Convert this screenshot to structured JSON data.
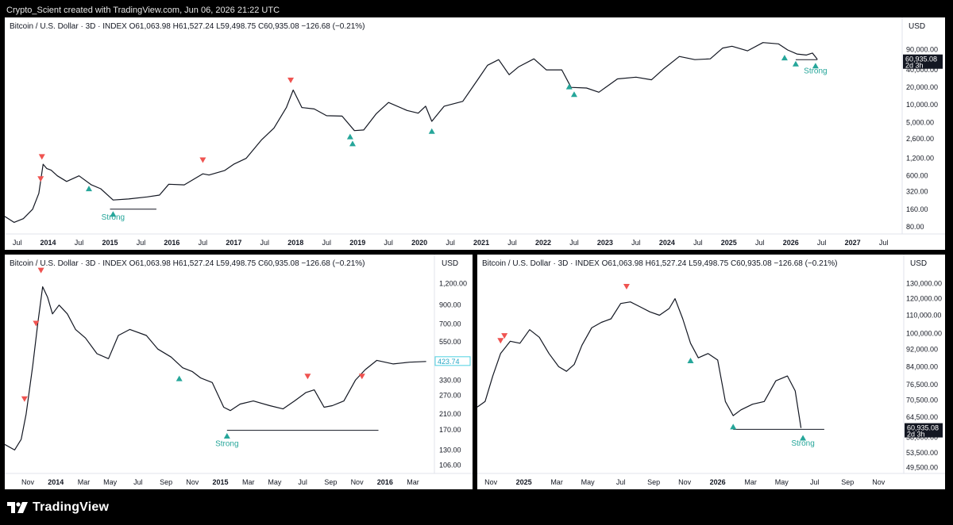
{
  "header": {
    "attribution": "Crypto_Scient created with TradingView.com, Jun 06, 2026 21:22 UTC"
  },
  "brand": {
    "name": "TradingView"
  },
  "colors": {
    "price_line": "#131722",
    "sell": "#ef5350",
    "buy": "#26a69a",
    "strong": "#26a69a",
    "background": "#ffffff"
  },
  "chart_data": [
    {
      "type": "line",
      "ohlc_label": "Bitcoin / U.S. Dollar · 3D · INDEX  O61,063.98  H61,527.24  L59,498.75  C60,935.08  −126.68 (−0.21%)",
      "currency": "USD",
      "scale": "log",
      "ylim": [
        60,
        160000
      ],
      "xlim": [
        2013.3,
        2027.8
      ],
      "y_ticks": [
        80,
        160,
        320,
        600,
        1200,
        2600,
        5000,
        10000,
        20000,
        40000,
        90000
      ],
      "y_tick_labels": [
        "80.00",
        "160.00",
        "320.00",
        "600.00",
        "1,200.00",
        "2,600.00",
        "5,000.00",
        "10,000.00",
        "20,000.00",
        "40,000.00",
        "90,000.00"
      ],
      "x_ticks": [
        2013.5,
        2014,
        2014.5,
        2015,
        2015.5,
        2016,
        2016.5,
        2017,
        2017.5,
        2018,
        2018.5,
        2019,
        2019.5,
        2020,
        2020.5,
        2021,
        2021.5,
        2022,
        2022.5,
        2023,
        2023.5,
        2024,
        2024.5,
        2025,
        2025.5,
        2026,
        2026.5,
        2027,
        2027.5
      ],
      "x_tick_labels": [
        "Jul",
        "2014",
        "Jul",
        "2015",
        "Jul",
        "2016",
        "Jul",
        "2017",
        "Jul",
        "2018",
        "Jul",
        "2019",
        "Jul",
        "2020",
        "Jul",
        "2021",
        "Jul",
        "2022",
        "Jul",
        "2023",
        "Jul",
        "2024",
        "Jul",
        "2025",
        "Jul",
        "2026",
        "Jul",
        "2027",
        "Jul"
      ],
      "last_price": {
        "value": 60935.08,
        "label": "60,935.08",
        "countdown": "2d 3h"
      },
      "series": [
        {
          "points": [
            [
              2013.3,
              120
            ],
            [
              2013.45,
              95
            ],
            [
              2013.6,
              110
            ],
            [
              2013.75,
              160
            ],
            [
              2013.85,
              300
            ],
            [
              2013.92,
              950
            ],
            [
              2013.98,
              800
            ],
            [
              2014.05,
              750
            ],
            [
              2014.15,
              600
            ],
            [
              2014.3,
              480
            ],
            [
              2014.5,
              600
            ],
            [
              2014.7,
              420
            ],
            [
              2014.85,
              360
            ],
            [
              2015.05,
              230
            ],
            [
              2015.3,
              240
            ],
            [
              2015.6,
              260
            ],
            [
              2015.8,
              280
            ],
            [
              2015.95,
              430
            ],
            [
              2016.2,
              420
            ],
            [
              2016.5,
              650
            ],
            [
              2016.6,
              620
            ],
            [
              2016.85,
              740
            ],
            [
              2017.0,
              950
            ],
            [
              2017.2,
              1200
            ],
            [
              2017.45,
              2500
            ],
            [
              2017.65,
              4000
            ],
            [
              2017.85,
              9000
            ],
            [
              2017.96,
              18000
            ],
            [
              2018.1,
              9000
            ],
            [
              2018.3,
              8500
            ],
            [
              2018.5,
              6500
            ],
            [
              2018.75,
              6400
            ],
            [
              2018.95,
              3600
            ],
            [
              2019.1,
              3700
            ],
            [
              2019.3,
              7000
            ],
            [
              2019.5,
              11000
            ],
            [
              2019.8,
              8000
            ],
            [
              2019.98,
              7200
            ],
            [
              2020.1,
              9500
            ],
            [
              2020.2,
              5200
            ],
            [
              2020.4,
              9500
            ],
            [
              2020.7,
              11500
            ],
            [
              2020.95,
              28000
            ],
            [
              2021.1,
              48000
            ],
            [
              2021.28,
              60000
            ],
            [
              2021.45,
              33000
            ],
            [
              2021.6,
              45000
            ],
            [
              2021.85,
              62000
            ],
            [
              2022.05,
              40000
            ],
            [
              2022.3,
              40000
            ],
            [
              2022.45,
              20000
            ],
            [
              2022.7,
              19500
            ],
            [
              2022.9,
              16500
            ],
            [
              2023.2,
              28000
            ],
            [
              2023.5,
              30000
            ],
            [
              2023.75,
              27000
            ],
            [
              2023.95,
              42000
            ],
            [
              2024.2,
              68000
            ],
            [
              2024.45,
              60000
            ],
            [
              2024.7,
              62000
            ],
            [
              2024.9,
              95000
            ],
            [
              2025.05,
              102000
            ],
            [
              2025.3,
              85000
            ],
            [
              2025.55,
              118000
            ],
            [
              2025.8,
              112000
            ],
            [
              2025.95,
              88000
            ],
            [
              2026.1,
              75000
            ],
            [
              2026.25,
              72000
            ],
            [
              2026.35,
              78000
            ],
            [
              2026.43,
              60935
            ]
          ]
        }
      ],
      "markers": [
        {
          "x": 2013.88,
          "y": 520,
          "type": "sell"
        },
        {
          "x": 2013.9,
          "y": 1250,
          "type": "sell"
        },
        {
          "x": 2014.66,
          "y": 370,
          "type": "buy"
        },
        {
          "x": 2015.05,
          "y": 135,
          "type": "buy"
        },
        {
          "x": 2016.5,
          "y": 1100,
          "type": "sell"
        },
        {
          "x": 2017.92,
          "y": 26000,
          "type": "sell"
        },
        {
          "x": 2018.88,
          "y": 2900,
          "type": "buy"
        },
        {
          "x": 2018.92,
          "y": 2200,
          "type": "buy"
        },
        {
          "x": 2020.2,
          "y": 3600,
          "type": "buy"
        },
        {
          "x": 2022.42,
          "y": 21000,
          "type": "buy"
        },
        {
          "x": 2022.5,
          "y": 15500,
          "type": "buy"
        },
        {
          "x": 2025.9,
          "y": 66000,
          "type": "buy"
        },
        {
          "x": 2026.08,
          "y": 52000,
          "type": "buy"
        },
        {
          "x": 2026.4,
          "y": 48000,
          "type": "buy"
        }
      ],
      "support_lines": [
        {
          "x1": 2015.0,
          "x2": 2015.75,
          "y": 160
        },
        {
          "x1": 2026.08,
          "x2": 2026.43,
          "y": 60000
        }
      ],
      "annotations": [
        {
          "text": "Strong",
          "x": 2015.05,
          "y": 105
        },
        {
          "text": "Strong",
          "x": 2026.4,
          "y": 35000
        }
      ]
    },
    {
      "type": "line",
      "ohlc_label": "Bitcoin / U.S. Dollar · 3D · INDEX  O61,063.98  H61,527.24  L59,498.75  C60,935.08  −126.68 (−0.21%)",
      "currency": "USD",
      "scale": "log",
      "ylim": [
        95,
        1400
      ],
      "xlim": [
        2013.69,
        2016.3
      ],
      "y_ticks": [
        106,
        130,
        170,
        210,
        270,
        330,
        420,
        550,
        700,
        900,
        1200
      ],
      "y_tick_labels": [
        "106.00",
        "130.00",
        "170.00",
        "210.00",
        "270.00",
        "330.00",
        "420.00",
        "550.00",
        "700.00",
        "900.00",
        "1,200.00"
      ],
      "x_ticks": [
        2013.67,
        2013.83,
        2014.0,
        2014.17,
        2014.33,
        2014.5,
        2014.67,
        2014.83,
        2015.0,
        2015.17,
        2015.33,
        2015.5,
        2015.67,
        2015.83,
        2016.0,
        2016.17
      ],
      "x_tick_labels": [
        "Sep",
        "Nov",
        "2014",
        "Mar",
        "May",
        "Jul",
        "Sep",
        "Nov",
        "2015",
        "Mar",
        "May",
        "Jul",
        "Sep",
        "Nov",
        "2016",
        "Mar"
      ],
      "last_price": {
        "value": 423.74,
        "label": "423.74"
      },
      "series": [
        {
          "points": [
            [
              2013.69,
              140
            ],
            [
              2013.75,
              130
            ],
            [
              2013.79,
              150
            ],
            [
              2013.82,
              210
            ],
            [
              2013.86,
              400
            ],
            [
              2013.89,
              700
            ],
            [
              2013.92,
              1150
            ],
            [
              2013.95,
              1000
            ],
            [
              2013.98,
              800
            ],
            [
              2014.02,
              900
            ],
            [
              2014.07,
              800
            ],
            [
              2014.12,
              650
            ],
            [
              2014.18,
              580
            ],
            [
              2014.25,
              470
            ],
            [
              2014.32,
              440
            ],
            [
              2014.38,
              600
            ],
            [
              2014.45,
              650
            ],
            [
              2014.55,
              600
            ],
            [
              2014.62,
              500
            ],
            [
              2014.7,
              450
            ],
            [
              2014.77,
              390
            ],
            [
              2014.83,
              370
            ],
            [
              2014.88,
              340
            ],
            [
              2014.95,
              320
            ],
            [
              2015.02,
              230
            ],
            [
              2015.06,
              220
            ],
            [
              2015.12,
              240
            ],
            [
              2015.2,
              250
            ],
            [
              2015.3,
              235
            ],
            [
              2015.38,
              225
            ],
            [
              2015.45,
              250
            ],
            [
              2015.52,
              280
            ],
            [
              2015.57,
              290
            ],
            [
              2015.63,
              230
            ],
            [
              2015.68,
              235
            ],
            [
              2015.75,
              250
            ],
            [
              2015.82,
              330
            ],
            [
              2015.88,
              380
            ],
            [
              2015.95,
              430
            ],
            [
              2016.05,
              410
            ],
            [
              2016.15,
              420
            ],
            [
              2016.25,
              424
            ]
          ]
        }
      ],
      "markers": [
        {
          "x": 2013.81,
          "y": 255,
          "type": "sell"
        },
        {
          "x": 2013.88,
          "y": 700,
          "type": "sell"
        },
        {
          "x": 2013.91,
          "y": 1420,
          "type": "sell"
        },
        {
          "x": 2014.75,
          "y": 340,
          "type": "buy"
        },
        {
          "x": 2015.04,
          "y": 158,
          "type": "buy"
        },
        {
          "x": 2015.53,
          "y": 345,
          "type": "sell"
        },
        {
          "x": 2015.86,
          "y": 345,
          "type": "sell"
        }
      ],
      "support_lines": [
        {
          "x1": 2015.04,
          "x2": 2015.96,
          "y": 169
        }
      ],
      "annotations": [
        {
          "text": "Strong",
          "x": 2015.04,
          "y": 137
        }
      ]
    },
    {
      "type": "line",
      "ohlc_label": "Bitcoin / U.S. Dollar · 3D · INDEX  O61,063.98  H61,527.24  L59,498.75  C60,935.08  −126.68 (−0.21%)",
      "currency": "USD",
      "scale": "log",
      "ylim": [
        48000,
        138000
      ],
      "xlim": [
        2024.76,
        2026.96
      ],
      "y_ticks": [
        49500,
        53500,
        58000,
        64500,
        70500,
        76500,
        84000,
        92000,
        100000,
        110000,
        120000,
        130000
      ],
      "y_tick_labels": [
        "49,500.00",
        "53,500.00",
        "58,000.00",
        "64,500.00",
        "70,500.00",
        "76,500.00",
        "84,000.00",
        "92,000.00",
        "100,000.00",
        "110,000.00",
        "120,000.00",
        "130,000.00"
      ],
      "x_ticks": [
        2024.83,
        2025.0,
        2025.17,
        2025.33,
        2025.5,
        2025.67,
        2025.83,
        2026.0,
        2026.17,
        2026.33,
        2026.5,
        2026.67,
        2026.83
      ],
      "x_tick_labels": [
        "Nov",
        "2025",
        "Mar",
        "May",
        "Jul",
        "Sep",
        "Nov",
        "2026",
        "Mar",
        "May",
        "Jul",
        "Sep",
        "Nov"
      ],
      "last_price": {
        "value": 60935.08,
        "label": "60,935.08",
        "countdown": "2d 3h"
      },
      "series": [
        {
          "points": [
            [
              2024.76,
              68000
            ],
            [
              2024.8,
              70000
            ],
            [
              2024.84,
              80000
            ],
            [
              2024.88,
              90000
            ],
            [
              2024.93,
              96000
            ],
            [
              2024.98,
              95000
            ],
            [
              2025.03,
              102000
            ],
            [
              2025.08,
              98000
            ],
            [
              2025.13,
              90000
            ],
            [
              2025.18,
              84000
            ],
            [
              2025.22,
              82000
            ],
            [
              2025.26,
              85000
            ],
            [
              2025.3,
              94000
            ],
            [
              2025.35,
              103000
            ],
            [
              2025.4,
              106000
            ],
            [
              2025.45,
              108000
            ],
            [
              2025.5,
              117000
            ],
            [
              2025.55,
              118000
            ],
            [
              2025.6,
              115000
            ],
            [
              2025.65,
              112000
            ],
            [
              2025.7,
              110000
            ],
            [
              2025.75,
              114000
            ],
            [
              2025.78,
              120000
            ],
            [
              2025.82,
              108000
            ],
            [
              2025.86,
              95000
            ],
            [
              2025.9,
              88000
            ],
            [
              2025.95,
              90000
            ],
            [
              2026.0,
              87000
            ],
            [
              2026.04,
              70000
            ],
            [
              2026.08,
              65000
            ],
            [
              2026.12,
              67000
            ],
            [
              2026.18,
              69000
            ],
            [
              2026.24,
              70000
            ],
            [
              2026.3,
              78000
            ],
            [
              2026.36,
              80000
            ],
            [
              2026.4,
              74000
            ],
            [
              2026.43,
              60935
            ]
          ]
        }
      ],
      "markers": [
        {
          "x": 2024.88,
          "y": 96000,
          "type": "sell"
        },
        {
          "x": 2024.9,
          "y": 98500,
          "type": "sell"
        },
        {
          "x": 2025.53,
          "y": 127500,
          "type": "sell"
        },
        {
          "x": 2025.86,
          "y": 87000,
          "type": "buy"
        },
        {
          "x": 2026.08,
          "y": 61500,
          "type": "buy"
        },
        {
          "x": 2026.44,
          "y": 58000,
          "type": "buy"
        }
      ],
      "support_lines": [
        {
          "x1": 2026.08,
          "x2": 2026.55,
          "y": 60500
        }
      ],
      "annotations": [
        {
          "text": "Strong",
          "x": 2026.44,
          "y": 55500
        }
      ]
    }
  ]
}
